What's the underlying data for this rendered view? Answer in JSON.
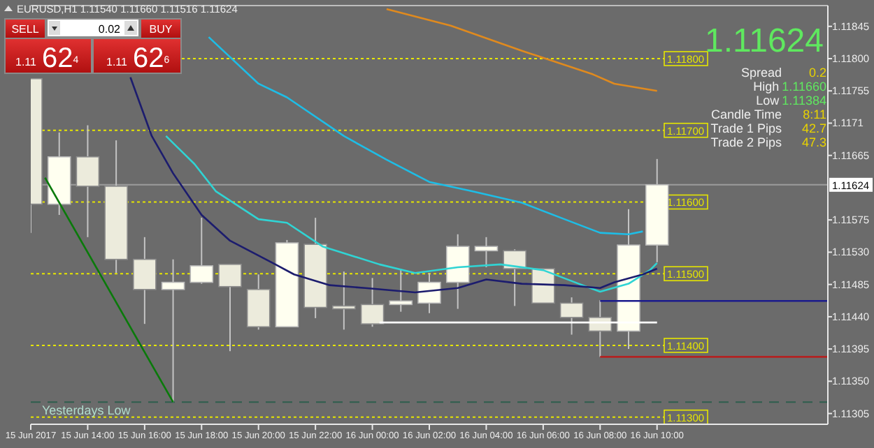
{
  "chart_data": {
    "type": "candlestick",
    "title": "EURUSD,H1 1.11540 1.11660 1.11516 1.11624",
    "x": [
      "2017-06-15T12:00",
      "2017-06-15T13:00",
      "2017-06-15T14:00",
      "2017-06-15T15:00",
      "2017-06-15T16:00",
      "2017-06-15T17:00",
      "2017-06-15T18:00",
      "2017-06-15T19:00",
      "2017-06-15T20:00",
      "2017-06-15T21:00",
      "2017-06-15T22:00",
      "2017-06-15T23:00",
      "2017-06-16T00:00",
      "2017-06-16T01:00",
      "2017-06-16T02:00",
      "2017-06-16T03:00",
      "2017-06-16T04:00",
      "2017-06-16T05:00",
      "2017-06-16T06:00",
      "2017-06-16T07:00",
      "2017-06-16T08:00",
      "2017-06-16T09:00",
      "2017-06-16T10:00"
    ],
    "ohlc": [
      [
        1.11772,
        1.11772,
        1.11557,
        1.11597
      ],
      [
        1.11597,
        1.11697,
        1.11582,
        1.11663
      ],
      [
        1.11663,
        1.11707,
        1.11551,
        1.11622
      ],
      [
        1.11622,
        1.11686,
        1.11501,
        1.1152
      ],
      [
        1.1152,
        1.11551,
        1.1143,
        1.11478
      ],
      [
        1.11478,
        1.1152,
        1.11321,
        1.11488
      ],
      [
        1.11488,
        1.11578,
        1.11486,
        1.11511
      ],
      [
        1.11513,
        1.11513,
        1.11392,
        1.11482
      ],
      [
        1.11478,
        1.11499,
        1.11422,
        1.11426
      ],
      [
        1.11426,
        1.11547,
        1.11426,
        1.11543
      ],
      [
        1.11541,
        1.11578,
        1.11438,
        1.11453
      ],
      [
        1.11455,
        1.11503,
        1.11422,
        1.11451
      ],
      [
        1.11457,
        1.11494,
        1.11426,
        1.1143
      ],
      [
        1.11457,
        1.11507,
        1.11447,
        1.11462
      ],
      [
        1.11459,
        1.11501,
        1.11445,
        1.11488
      ],
      [
        1.11488,
        1.11555,
        1.11451,
        1.11538
      ],
      [
        1.11532,
        1.11551,
        1.11509,
        1.11538
      ],
      [
        1.11532,
        1.11534,
        1.11455,
        1.11507
      ],
      [
        1.11507,
        1.11507,
        1.11459,
        1.11459
      ],
      [
        1.11459,
        1.11467,
        1.11415,
        1.11439
      ],
      [
        1.11439,
        1.11463,
        1.11384,
        1.1142
      ],
      [
        1.1142,
        1.1159,
        1.11395,
        1.1154
      ],
      [
        1.1154,
        1.1166,
        1.11516,
        1.11624
      ]
    ],
    "series": [
      {
        "type": "line",
        "color": "#e08a1e",
        "x": [
          "2017-06-16T00:30",
          "2017-06-16T02:45",
          "2017-06-16T05:15",
          "2017-06-16T07:45",
          "2017-06-16T08:30",
          "2017-06-16T10:00"
        ],
        "values": [
          1.11869,
          1.11846,
          1.11811,
          1.11778,
          1.11765,
          1.11755
        ]
      },
      {
        "type": "line",
        "color": "#1ebde6",
        "x": [
          "2017-06-15T18:15",
          "2017-06-15T20:00",
          "2017-06-15T21:00",
          "2017-06-15T23:00",
          "2017-06-16T00:30",
          "2017-06-16T02:00",
          "2017-06-16T03:30",
          "2017-06-16T05:15",
          "2017-06-16T06:45",
          "2017-06-16T08:00",
          "2017-06-16T09:00",
          "2017-06-16T09:30"
        ],
        "values": [
          1.1183,
          1.11765,
          1.11746,
          1.11692,
          1.11659,
          1.11628,
          1.11615,
          1.11599,
          1.11576,
          1.11557,
          1.11555,
          1.11559
        ]
      },
      {
        "type": "line",
        "color": "#30d4d4",
        "x": [
          "2017-06-15T16:45",
          "2017-06-15T17:45",
          "2017-06-15T18:30",
          "2017-06-15T20:00",
          "2017-06-15T21:00",
          "2017-06-15T22:15",
          "2017-06-16T00:15",
          "2017-06-16T01:30",
          "2017-06-16T03:00",
          "2017-06-16T04:30",
          "2017-06-16T06:00",
          "2017-06-16T07:15",
          "2017-06-16T08:00",
          "2017-06-16T09:00",
          "2017-06-16T09:45",
          "2017-06-16T10:00"
        ],
        "values": [
          1.11692,
          1.11653,
          1.11615,
          1.11576,
          1.11571,
          1.11538,
          1.11513,
          1.11501,
          1.11509,
          1.11513,
          1.11505,
          1.11486,
          1.11475,
          1.11486,
          1.11505,
          1.11515
        ]
      },
      {
        "type": "line",
        "color": "#1c1c6e",
        "x": [
          "2017-06-15T15:30",
          "2017-06-15T16:15",
          "2017-06-15T17:00",
          "2017-06-15T18:00",
          "2017-06-15T19:00",
          "2017-06-15T20:30",
          "2017-06-15T21:15",
          "2017-06-15T22:30",
          "2017-06-15T23:45",
          "2017-06-16T01:30",
          "2017-06-16T03:00",
          "2017-06-16T04:00",
          "2017-06-16T05:15",
          "2017-06-16T06:45",
          "2017-06-16T08:00",
          "2017-06-16T08:30",
          "2017-06-16T09:30",
          "2017-06-16T10:00"
        ],
        "values": [
          1.11774,
          1.11692,
          1.1164,
          1.11582,
          1.11546,
          1.11515,
          1.11499,
          1.11484,
          1.1148,
          1.11474,
          1.1148,
          1.11492,
          1.11486,
          1.11484,
          1.1148,
          1.11488,
          1.11499,
          1.11507
        ]
      },
      {
        "type": "line",
        "color": "#0a7a0a",
        "x": [
          "2017-06-15T12:30",
          "2017-06-15T17:00"
        ],
        "values": [
          1.11634,
          1.11321
        ]
      },
      {
        "type": "line",
        "color": "#ffffff",
        "x": [
          "2017-06-16T00:15",
          "2017-06-16T10:00"
        ],
        "values": [
          1.11432,
          1.11432
        ]
      },
      {
        "type": "line",
        "color": "#1a1a8c",
        "x": [
          "2017-06-16T08:00",
          "2017-06-16T16:00"
        ],
        "values": [
          1.11462,
          1.11462
        ]
      },
      {
        "type": "line",
        "color": "#b22222",
        "x": [
          "2017-06-16T08:00",
          "2017-06-16T16:00"
        ],
        "values": [
          1.11384,
          1.11384
        ]
      }
    ],
    "ref_lines": [
      {
        "axis": "y",
        "value": 1.118,
        "label": "1.11800",
        "color": "#e6e600",
        "line_style": "dotted"
      },
      {
        "axis": "y",
        "value": 1.117,
        "label": "1.11700",
        "color": "#e6e600",
        "line_style": "dotted"
      },
      {
        "axis": "y",
        "value": 1.116,
        "label": "1.11600",
        "color": "#e6e600",
        "line_style": "dotted"
      },
      {
        "axis": "y",
        "value": 1.115,
        "label": "1.11500",
        "color": "#e6e600",
        "line_style": "dotted"
      },
      {
        "axis": "y",
        "value": 1.114,
        "label": "1.11400",
        "color": "#e6e600",
        "line_style": "dotted"
      },
      {
        "axis": "y",
        "value": 1.113,
        "label": "1.11300",
        "color": "#e6e600",
        "line_style": "dotted"
      },
      {
        "axis": "y",
        "value": 1.11624,
        "label": "1.11624",
        "color": "#9c9c9c",
        "line_style": "solid"
      },
      {
        "axis": "y",
        "value": 1.11321,
        "label": "Yesterdays Low",
        "color": "#2e5e4e",
        "line_style": "dashed"
      }
    ],
    "annotations": [
      "SELL",
      "0.02",
      "BUY",
      "1.11",
      "62$^{4}$",
      "1.11",
      "62$^{6}$",
      "1.11624",
      "Spread",
      "0.2",
      "High",
      "1.11660",
      "Low",
      "1.11384",
      "Candle Time",
      "8:11",
      "Trade 1 Pips",
      "42.7",
      "Trade 2 Pips",
      "47.3"
    ],
    "xlim": [
      "2017-06-15T12:00",
      "2017-06-16T16:00"
    ],
    "xticks": [
      {
        "value": "2017-06-15T12:00",
        "label": "15 Jun 2017"
      },
      {
        "value": "2017-06-15T14:00",
        "label": "15 Jun 14:00"
      },
      {
        "value": "2017-06-15T16:00",
        "label": "15 Jun 16:00"
      },
      {
        "value": "2017-06-15T18:00",
        "label": "15 Jun 18:00"
      },
      {
        "value": "2017-06-15T20:00",
        "label": "15 Jun 20:00"
      },
      {
        "value": "2017-06-15T22:00",
        "label": "15 Jun 22:00"
      },
      {
        "value": "2017-06-16T00:00",
        "label": "16 Jun 00:00"
      },
      {
        "value": "2017-06-16T02:00",
        "label": "16 Jun 02:00"
      },
      {
        "value": "2017-06-16T04:00",
        "label": "16 Jun 04:00"
      },
      {
        "value": "2017-06-16T06:00",
        "label": "16 Jun 06:00"
      },
      {
        "value": "2017-06-16T08:00",
        "label": "16 Jun 08:00"
      },
      {
        "value": "2017-06-16T10:00",
        "label": "16 Jun 10:00"
      }
    ],
    "ylim": [
      1.1129,
      1.11872
    ],
    "yticks": [
      1.11305,
      {
        "value": 1.1135,
        "label": "1.11350"
      },
      1.11395,
      {
        "value": 1.1144,
        "label": "1.11440"
      },
      1.11485,
      {
        "value": 1.1153,
        "label": "1.11530"
      },
      1.11575,
      1.11665,
      1.1171,
      1.11755,
      {
        "value": 1.118,
        "label": "1.11800"
      },
      1.11845
    ]
  }
}
